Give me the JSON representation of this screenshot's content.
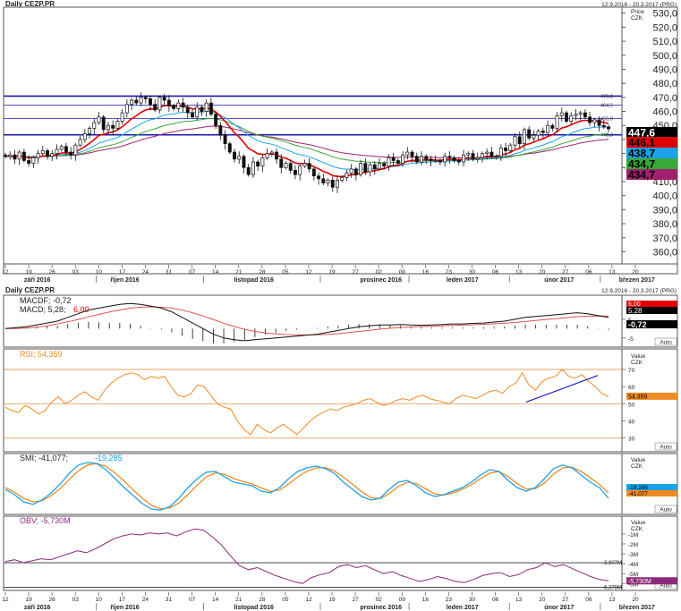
{
  "header": {
    "title": "Daily CEZP.PR",
    "date_range": "12.9.2016 - 20.3.2017 (PRG)",
    "axis_unit_top": "Price",
    "axis_currency": "CZK"
  },
  "header2": {
    "title": "Daily CEZP.PR",
    "date_range": "12.9.2016 - 20.3.2017 (PRG)"
  },
  "auto_label": "Auto",
  "x_axis": {
    "day_ticks": [
      "12",
      "19",
      "26",
      "03",
      "10",
      "17",
      "24",
      "31",
      "07",
      "14",
      "21",
      "28",
      "05",
      "12",
      "19",
      "27",
      "02",
      "09",
      "16",
      "23",
      "30",
      "06",
      "13",
      "20",
      "27",
      "06",
      "13",
      "20"
    ],
    "months": [
      "září 2016",
      "říjen 2016",
      "listopad 2016",
      "prosinec 2016",
      "leden 2017",
      "únor 2017",
      "březen 2017"
    ]
  },
  "chart_data": [
    {
      "type": "candlestick",
      "name_panel": "price",
      "ylabel": "Price CZK",
      "ylim": [
        352,
        533
      ],
      "y_ticks": [
        "360,0",
        "370,0",
        "380,0",
        "390,0",
        "400,0",
        "410,0",
        "420,0",
        "430,0",
        "440,0",
        "450,0",
        "460,0",
        "470,0",
        "480,0",
        "490,0",
        "500,0",
        "510,0",
        "520,0",
        "530,0"
      ],
      "y_tick_values": [
        360,
        370,
        380,
        390,
        400,
        410,
        420,
        430,
        440,
        450,
        460,
        470,
        480,
        490,
        500,
        510,
        520,
        530
      ],
      "close": [
        428,
        429,
        426,
        431,
        425,
        423,
        427,
        430,
        432,
        428,
        430,
        433,
        435,
        431,
        429,
        436,
        440,
        444,
        448,
        452,
        456,
        447,
        450,
        448,
        453,
        459,
        465,
        468,
        466,
        470,
        469,
        465,
        461,
        470,
        468,
        464,
        462,
        466,
        463,
        459,
        456,
        463,
        460,
        466,
        458,
        450,
        443,
        437,
        431,
        426,
        428,
        420,
        415,
        424,
        421,
        427,
        430,
        431,
        426,
        420,
        423,
        418,
        415,
        421,
        423,
        419,
        414,
        412,
        409,
        411,
        406,
        411,
        413,
        416,
        419,
        415,
        423,
        417,
        422,
        419,
        423,
        421,
        427,
        425,
        423,
        429,
        431,
        428,
        424,
        428,
        426,
        425,
        425,
        424,
        428,
        427,
        425,
        424,
        429,
        430,
        426,
        427,
        430,
        431,
        428,
        428,
        434,
        432,
        436,
        442,
        437,
        447,
        441,
        443,
        446,
        445,
        450,
        448,
        457,
        459,
        453,
        457,
        458,
        459,
        456,
        452,
        454,
        450,
        449,
        447.6
      ],
      "high_low_spread": 3,
      "hlines": [
        {
          "value": 470.9,
          "label": "470,9",
          "color": "#1a1ab0"
        },
        {
          "value": 464.5,
          "label": "464,5",
          "color": "#1a1ab0"
        },
        {
          "value": 455.0,
          "label": "455,0",
          "color": "#1a1ab0"
        },
        {
          "value": 443.3,
          "label": "443,3",
          "color": "#1a1ab0"
        }
      ],
      "series": [
        {
          "name": "",
          "color": "#e00000",
          "last": "446,1"
        },
        {
          "name": "",
          "color": "#1aa3e8",
          "last": "438,7"
        },
        {
          "name": "",
          "color": "#38a838",
          "last": "434,7"
        },
        {
          "name": "",
          "color": "#a0206e",
          "last": "434,7"
        }
      ],
      "last_price": "447,6"
    },
    {
      "type": "line",
      "name_panel": "macd",
      "label1": "MACDF; -0,72",
      "label2_a": "MACD; 5,28;",
      "label2_b": "6,00",
      "ylim": [
        -8,
        16
      ],
      "y_ticks": [
        "5",
        "-5"
      ],
      "y_tick_values": [
        5,
        -5
      ],
      "hist_last": "-0,72",
      "tags": [
        "6,00",
        "5,28"
      ],
      "macd": [
        0,
        0.5,
        1,
        2,
        3,
        4,
        6,
        8,
        10,
        11,
        12,
        13,
        13.5,
        13,
        12,
        11,
        9,
        6,
        3,
        0,
        -3,
        -5,
        -6,
        -6.5,
        -6,
        -5.5,
        -5,
        -4.5,
        -4,
        -3.5,
        -3,
        -2,
        -1,
        0,
        1,
        1.5,
        2,
        2,
        2.2,
        2,
        1.8,
        2,
        2.2,
        2.5,
        2.5,
        2.8,
        3,
        3.5,
        4,
        5,
        6,
        6.5,
        7,
        7.5,
        8,
        8.5,
        8,
        7,
        6
      ],
      "signal": [
        0,
        0,
        0.3,
        0.8,
        1.5,
        2.5,
        3.6,
        4.9,
        6.3,
        7.6,
        8.9,
        10,
        11,
        11.5,
        11.7,
        11.5,
        11,
        9.9,
        8.5,
        6.8,
        4.9,
        2.9,
        1.1,
        -0.4,
        -1.5,
        -2.3,
        -2.8,
        -3.2,
        -3.4,
        -3.4,
        -3.3,
        -3.1,
        -2.7,
        -2.1,
        -1.5,
        -0.9,
        -0.3,
        0.2,
        0.6,
        0.9,
        1.1,
        1.3,
        1.5,
        1.7,
        1.9,
        2.1,
        2.3,
        2.6,
        2.9,
        3.3,
        3.8,
        4.4,
        4.9,
        5.4,
        5.9,
        6.4,
        6.7,
        6.8,
        6.7
      ]
    },
    {
      "type": "line",
      "name_panel": "rsi",
      "label": "RSI; 54,359",
      "unit_top": "Value",
      "unit_currency": "CZK",
      "ylim": [
        22,
        82
      ],
      "y_ticks": [
        "70",
        "60",
        "50",
        "40",
        "30"
      ],
      "y_tick_values": [
        70,
        60,
        50,
        40,
        30
      ],
      "hlines": [
        70,
        50,
        30
      ],
      "last": "54,359",
      "values": [
        48,
        46,
        45,
        49,
        47,
        44,
        46,
        51,
        54,
        50,
        52,
        55,
        57,
        54,
        52,
        58,
        62,
        65,
        67,
        68,
        67,
        64,
        66,
        65,
        66,
        60,
        55,
        54,
        56,
        61,
        60,
        55,
        50,
        48,
        47,
        40,
        35,
        32,
        38,
        35,
        33,
        36,
        38,
        35,
        32,
        36,
        40,
        43,
        45,
        47,
        46,
        48,
        49,
        50,
        52,
        53,
        51,
        49,
        50,
        52,
        53,
        52,
        54,
        55,
        53,
        52,
        51,
        50,
        53,
        55,
        54,
        53,
        55,
        57,
        58,
        56,
        60,
        62,
        68,
        61,
        58,
        63,
        65,
        66,
        70,
        66,
        65,
        67,
        63,
        60,
        56,
        54
      ]
    },
    {
      "type": "line",
      "name_panel": "smi",
      "label_a": "SMI; -41,077;",
      "label_b": "-19,285",
      "unit_top": "Value",
      "unit_currency": "CZK",
      "ylim": [
        -90,
        80
      ],
      "tags": [
        "-19,285",
        "-41,077"
      ],
      "s1": [
        -20,
        -35,
        -55,
        -62,
        -50,
        -30,
        -5,
        25,
        48,
        55,
        52,
        35,
        10,
        -15,
        -38,
        -60,
        -75,
        -78,
        -68,
        -45,
        -15,
        10,
        28,
        30,
        15,
        0,
        -5,
        -10,
        -25,
        -30,
        -15,
        10,
        30,
        40,
        45,
        38,
        25,
        0,
        -20,
        -40,
        -50,
        -45,
        -20,
        0,
        5,
        -10,
        -30,
        -40,
        -35,
        -25,
        -15,
        0,
        20,
        35,
        30,
        5,
        -15,
        -25,
        -15,
        10,
        38,
        48,
        40,
        20,
        0,
        -15,
        -45
      ],
      "s2": [
        -15,
        -28,
        -45,
        -55,
        -52,
        -38,
        -18,
        8,
        32,
        48,
        52,
        44,
        26,
        3,
        -22,
        -45,
        -65,
        -74,
        -72,
        -58,
        -34,
        -8,
        15,
        26,
        22,
        10,
        2,
        -5,
        -16,
        -26,
        -22,
        -5,
        15,
        30,
        40,
        41,
        32,
        14,
        -6,
        -27,
        -43,
        -46,
        -32,
        -12,
        0,
        -4,
        -19,
        -33,
        -36,
        -30,
        -20,
        -7,
        10,
        25,
        30,
        16,
        -4,
        -19,
        -18,
        -2,
        23,
        40,
        42,
        30,
        12,
        -6,
        -30
      ]
    },
    {
      "type": "line",
      "name_panel": "obv",
      "label": "OBV; -5,730M",
      "unit_top": "Value",
      "unit_currency": "CZK",
      "ylim": [
        -6.7,
        0.8
      ],
      "y_ticks": [
        "-1M",
        "-2M",
        "-3M",
        "-4M",
        "-5M",
        "-6M"
      ],
      "y_tick_values": [
        -1,
        -2,
        -3,
        -4,
        -5,
        -6
      ],
      "hlines": [
        {
          "value": -3.907,
          "label": "-3,907M"
        },
        {
          "value": -6.378,
          "label": "-6,378M"
        }
      ],
      "last": "-5,730M",
      "values": [
        -3.8,
        -3.6,
        -3.9,
        -3.7,
        -3.5,
        -3.6,
        -3.3,
        -3.0,
        -2.7,
        -2.9,
        -2.5,
        -2.0,
        -1.5,
        -1.2,
        -1.0,
        -1.1,
        -0.9,
        -1.0,
        -0.9,
        -1.2,
        -0.8,
        -0.5,
        -0.6,
        -1.3,
        -2.1,
        -3.2,
        -4.2,
        -4.6,
        -4.4,
        -4.8,
        -5.2,
        -5.5,
        -5.8,
        -6.0,
        -5.4,
        -5.1,
        -4.9,
        -4.3,
        -4.1,
        -4.4,
        -4.2,
        -4.6,
        -5.0,
        -4.8,
        -5.2,
        -5.5,
        -5.8,
        -5.6,
        -5.3,
        -5.5,
        -5.8,
        -5.9,
        -5.6,
        -5.2,
        -5.0,
        -4.9,
        -5.3,
        -5.1,
        -4.6,
        -4.4,
        -3.9,
        -4.3,
        -4.1,
        -4.5,
        -4.9,
        -5.3,
        -5.6,
        -5.73
      ]
    }
  ]
}
